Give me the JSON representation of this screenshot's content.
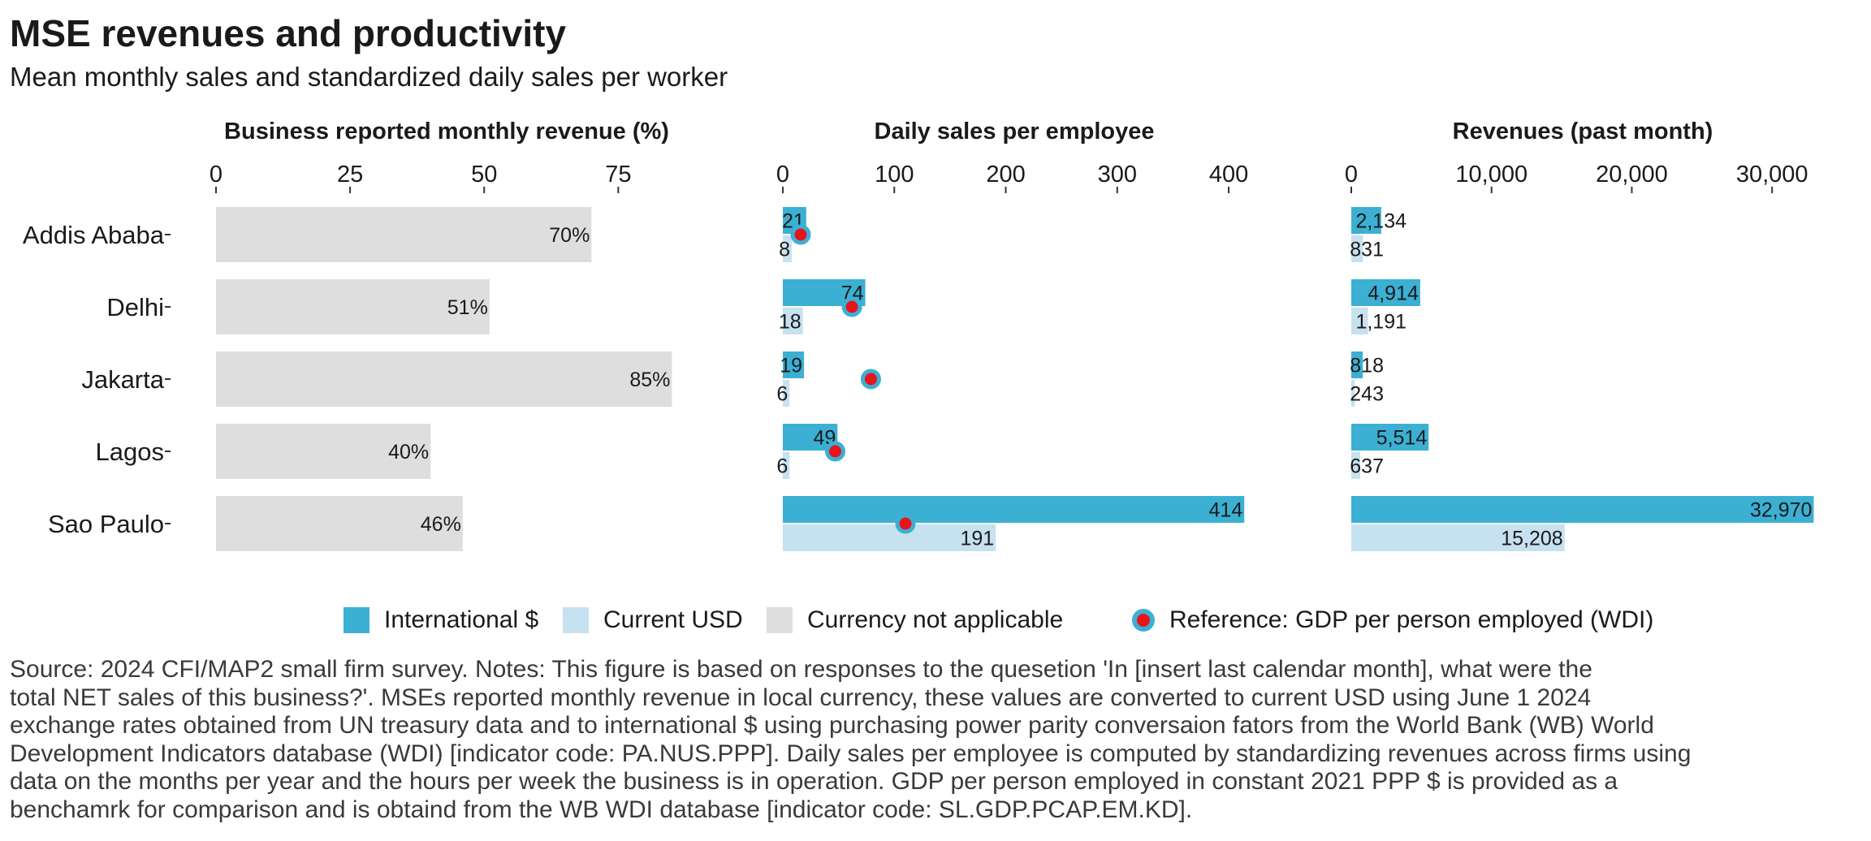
{
  "title": "MSE revenues and productivity",
  "subtitle": "Mean monthly sales and standardized daily sales per worker",
  "colors": {
    "international": "#3bb0d3",
    "current_usd": "#c6e1f0",
    "not_applicable": "#dedede",
    "reference_fill": "#e8141c",
    "reference_ring": "#3bb0d3"
  },
  "legend": {
    "international": "International $",
    "current_usd": "Current USD",
    "not_applicable": "Currency not applicable",
    "reference": "Reference: GDP per person employed (WDI)"
  },
  "chart_data": [
    {
      "type": "bar",
      "title": "Business reported monthly revenue (%)",
      "categories": [
        "Addis Ababa",
        "Delhi",
        "Jakarta",
        "Lagos",
        "Sao Paulo"
      ],
      "series": [
        {
          "name": "Currency not applicable",
          "values": [
            70,
            51,
            85,
            40,
            46
          ],
          "labels": [
            "70%",
            "51%",
            "85%",
            "40%",
            "46%"
          ]
        }
      ],
      "xlim": [
        0,
        86
      ],
      "ticks": [
        0,
        25,
        50,
        75
      ],
      "tick_labels": [
        "0",
        "25",
        "50",
        "75"
      ]
    },
    {
      "type": "bar",
      "title": "Daily sales per employee",
      "categories": [
        "Addis Ababa",
        "Delhi",
        "Jakarta",
        "Lagos",
        "Sao Paulo"
      ],
      "series": [
        {
          "name": "International $",
          "values": [
            21,
            74,
            19,
            49,
            414
          ],
          "labels": [
            "21",
            "74",
            "19",
            "49",
            "414"
          ]
        },
        {
          "name": "Current USD",
          "values": [
            8,
            18,
            6,
            6,
            191
          ],
          "labels": [
            "8",
            "18",
            "6",
            "6",
            "191"
          ]
        }
      ],
      "reference": {
        "name": "Reference: GDP per person employed (WDI)",
        "values": [
          16,
          62,
          79,
          47,
          110
        ]
      },
      "xlim": [
        0,
        416
      ],
      "ticks": [
        0,
        100,
        200,
        300,
        400
      ],
      "tick_labels": [
        "0",
        "100",
        "200",
        "300",
        "400"
      ]
    },
    {
      "type": "bar",
      "title": "Revenues (past month)",
      "categories": [
        "Addis Ababa",
        "Delhi",
        "Jakarta",
        "Lagos",
        "Sao Paulo"
      ],
      "series": [
        {
          "name": "International $",
          "values": [
            2134,
            4914,
            818,
            5514,
            32970
          ],
          "labels": [
            "2,134",
            "4,914",
            "818",
            "5,514",
            "32,970"
          ]
        },
        {
          "name": "Current USD",
          "values": [
            831,
            1191,
            243,
            637,
            15208
          ],
          "labels": [
            "831",
            "1,191",
            "243",
            "637",
            "15,208"
          ]
        }
      ],
      "xlim": [
        0,
        33000
      ],
      "ticks": [
        0,
        10000,
        20000,
        30000
      ],
      "tick_labels": [
        "0",
        "10,000",
        "20,000",
        "30,000"
      ]
    }
  ],
  "source_note": "Source: 2024 CFI/MAP2 small firm survey. Notes: This figure is based on responses to the quesetion 'In [insert last calendar month], what were the\ntotal NET sales of this business?'. MSEs reported monthly revenue in local currency, these values are converted to current USD using June 1 2024\nexchange rates obtained from UN treasury data and to international $ using purchasing power parity conversaion fators from the World Bank (WB) World\nDevelopment Indicators database (WDI) [indicator code: PA.NUS.PPP]. Daily sales per employee is computed by standardizing revenues across firms using\ndata on the months per year and the hours per week the business is in operation. GDP per person employed in constant 2021 PPP $ is provided as a\nbenchamrk for comparison and is obtaind from the WB WDI database [indicator code: SL.GDP.PCAP.EM.KD]."
}
